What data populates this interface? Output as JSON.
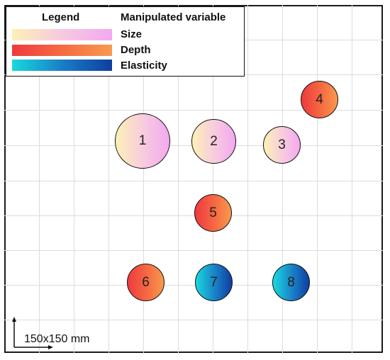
{
  "legend": {
    "header_left": "Legend",
    "header_right": "Manipulated variable",
    "items": [
      {
        "label": "Size",
        "colors": [
          "#fdf0b6",
          "#f3a8f0"
        ]
      },
      {
        "label": "Depth",
        "colors": [
          "#ee3a3f",
          "#f89a4e"
        ]
      },
      {
        "label": "Elasticity",
        "colors": [
          "#18d8df",
          "#0f3ea0"
        ]
      }
    ]
  },
  "samples": [
    {
      "label": "1",
      "variable": "Size"
    },
    {
      "label": "2",
      "variable": "Size"
    },
    {
      "label": "3",
      "variable": "Size"
    },
    {
      "label": "4",
      "variable": "Depth"
    },
    {
      "label": "5",
      "variable": "Depth"
    },
    {
      "label": "6",
      "variable": "Depth"
    },
    {
      "label": "7",
      "variable": "Elasticity"
    },
    {
      "label": "8",
      "variable": "Elasticity"
    }
  ],
  "scale_bar": {
    "label": "150x150 mm"
  }
}
